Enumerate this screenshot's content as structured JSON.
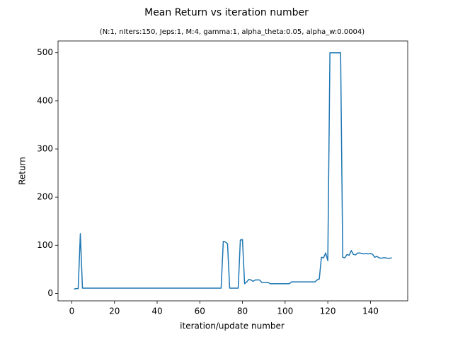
{
  "chart_data": {
    "type": "line",
    "title": "Mean Return vs iteration number",
    "subtitle": "(N:1, nIters:150, Jeps:1, M:4, gamma:1, alpha_theta:0.05, alpha_w:0.0004)",
    "xlabel": "iteration/update number",
    "ylabel": "Return",
    "color": "#1f77b4",
    "x": [
      1,
      2,
      3,
      4,
      5,
      6,
      7,
      8,
      9,
      10,
      11,
      12,
      13,
      14,
      15,
      16,
      17,
      18,
      19,
      20,
      21,
      22,
      23,
      24,
      25,
      26,
      27,
      28,
      29,
      30,
      31,
      32,
      33,
      34,
      35,
      36,
      37,
      38,
      39,
      40,
      41,
      42,
      43,
      44,
      45,
      46,
      47,
      48,
      49,
      50,
      51,
      52,
      53,
      54,
      55,
      56,
      57,
      58,
      59,
      60,
      61,
      62,
      63,
      64,
      65,
      66,
      67,
      68,
      69,
      70,
      71,
      72,
      73,
      74,
      75,
      76,
      77,
      78,
      79,
      80,
      81,
      82,
      83,
      84,
      85,
      86,
      87,
      88,
      89,
      90,
      91,
      92,
      93,
      94,
      95,
      96,
      97,
      98,
      99,
      100,
      101,
      102,
      103,
      104,
      105,
      106,
      107,
      108,
      109,
      110,
      111,
      112,
      113,
      114,
      115,
      116,
      117,
      118,
      119,
      120,
      121,
      122,
      123,
      124,
      125,
      126,
      127,
      128,
      129,
      130,
      131,
      132,
      133,
      134,
      135,
      136,
      137,
      138,
      139,
      140,
      141,
      142,
      143,
      144,
      145,
      146,
      147,
      148,
      149,
      150
    ],
    "values": [
      9,
      10,
      10,
      124,
      11,
      11,
      11,
      11,
      11,
      11,
      11,
      11,
      11,
      11,
      11,
      11,
      11,
      11,
      11,
      11,
      11,
      11,
      11,
      11,
      11,
      11,
      11,
      11,
      11,
      11,
      11,
      11,
      11,
      11,
      11,
      11,
      11,
      11,
      11,
      11,
      11,
      11,
      11,
      11,
      11,
      11,
      11,
      11,
      11,
      11,
      11,
      11,
      11,
      11,
      11,
      11,
      11,
      11,
      11,
      11,
      11,
      11,
      11,
      11,
      11,
      11,
      11,
      11,
      11,
      11,
      108,
      107,
      103,
      11,
      11,
      11,
      11,
      11,
      111,
      112,
      20,
      24,
      29,
      28,
      25,
      28,
      28,
      28,
      23,
      23,
      23,
      23,
      20,
      20,
      20,
      20,
      20,
      20,
      20,
      20,
      20,
      20,
      24,
      24,
      24,
      24,
      24,
      24,
      24,
      24,
      24,
      24,
      24,
      24,
      28,
      30,
      75,
      74,
      84,
      68,
      500,
      500,
      500,
      500,
      500,
      500,
      75,
      74,
      81,
      79,
      89,
      81,
      80,
      84,
      84,
      83,
      82,
      83,
      82,
      83,
      81,
      75,
      77,
      74,
      73,
      74,
      74,
      73,
      73,
      74
    ],
    "xlim": [
      -6.45,
      157.45
    ],
    "ylim": [
      -15.5,
      524.5
    ],
    "xticks": [
      0,
      20,
      40,
      60,
      80,
      100,
      120,
      140
    ],
    "yticks": [
      0,
      100,
      200,
      300,
      400,
      500
    ]
  }
}
